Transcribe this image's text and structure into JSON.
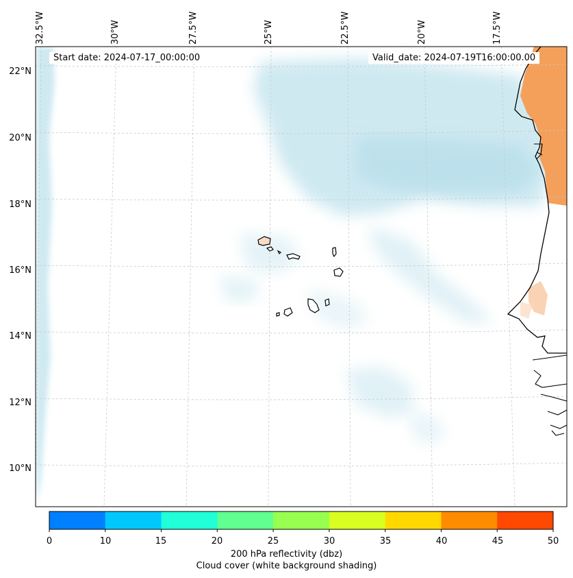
{
  "header": {
    "start_date": "Start date: 2024-07-17_00:00:00",
    "valid_date": "Valid_date: 2024-07-19T16:00:00.00"
  },
  "axes": {
    "longitude_labels": [
      "32.5°W",
      "30°W",
      "27.5°W",
      "25°W",
      "22.5°W",
      "20°W",
      "17.5°W"
    ],
    "latitude_labels": [
      "22°N",
      "20°N",
      "18°N",
      "16°N",
      "14°N",
      "12°N",
      "10°N"
    ]
  },
  "colorbar": {
    "ticks": [
      "0",
      "10",
      "15",
      "20",
      "25",
      "30",
      "35",
      "40",
      "45",
      "50"
    ],
    "colors": [
      "#0080ff",
      "#00c8ff",
      "#20ffd8",
      "#60ff90",
      "#98ff50",
      "#d8ff20",
      "#ffd800",
      "#ff8c00",
      "#ff4800"
    ],
    "label_line1": "200 hPa reflectivity (dbz)",
    "label_line2": "Cloud cover (white background shading)"
  },
  "map_colors": {
    "cloud": "#a8d8e6",
    "land_hot": "#f4a05a",
    "island_fill": "#f8dcc4",
    "coast": "#000000",
    "grid": "#c8c8c8"
  }
}
